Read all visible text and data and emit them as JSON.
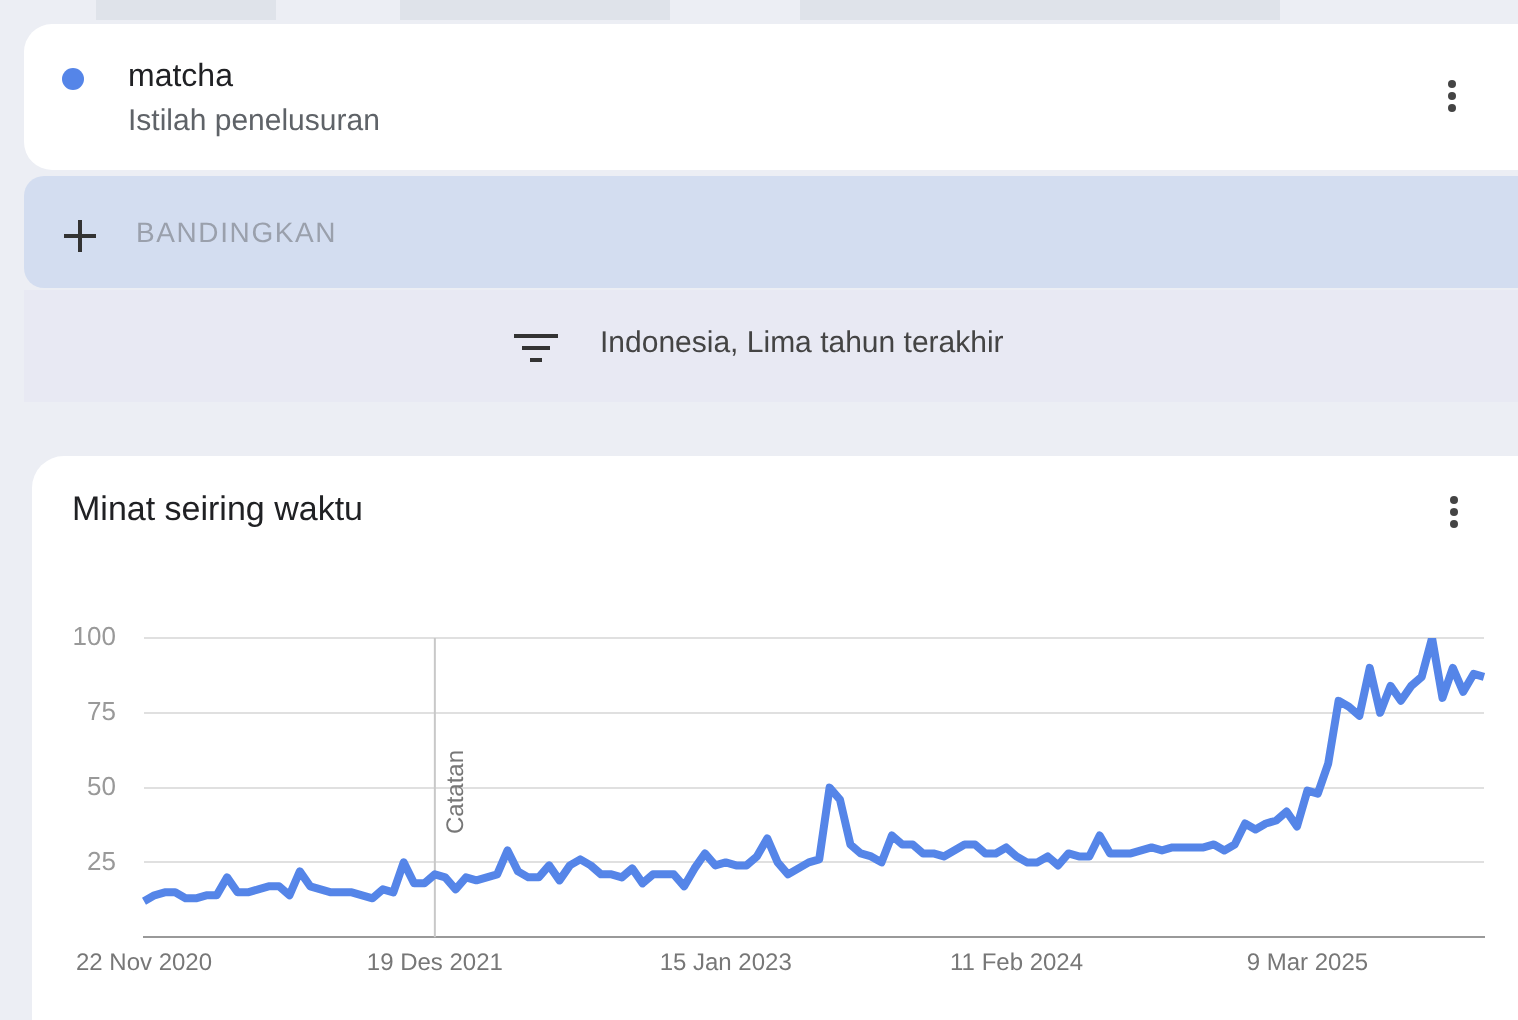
{
  "chart_data": {
    "type": "line",
    "title": "Minat seiring waktu",
    "annotations": [
      "Istilah penelusuran",
      "BANDINGKAN",
      "Indonesia, Lima tahun terakhir"
    ],
    "categories": [
      "22 Nov 2020",
      null,
      null,
      null,
      null,
      null,
      null,
      null,
      null,
      null,
      null,
      null,
      null,
      null,
      null,
      null,
      null,
      null,
      null,
      null,
      null,
      null,
      null,
      null,
      null,
      null,
      null,
      null,
      "19 Des 2021",
      null,
      null,
      null,
      null,
      null,
      null,
      null,
      null,
      null,
      null,
      null,
      null,
      null,
      null,
      null,
      null,
      null,
      null,
      null,
      null,
      null,
      null,
      null,
      null,
      null,
      null,
      null,
      "15 Jan 2023",
      null,
      null,
      null,
      null,
      null,
      null,
      null,
      null,
      null,
      null,
      null,
      null,
      null,
      null,
      null,
      null,
      null,
      null,
      null,
      null,
      null,
      null,
      null,
      null,
      null,
      null,
      null,
      "11 Feb 2024",
      null,
      null,
      null,
      null,
      null,
      null,
      null,
      null,
      null,
      null,
      null,
      null,
      null,
      null,
      null,
      null,
      null,
      null,
      null,
      null,
      null,
      null,
      null,
      null,
      null,
      null,
      null,
      "9 Mar 2025",
      null,
      null,
      null,
      null,
      null,
      null,
      null,
      null,
      null,
      null,
      null,
      null,
      null,
      null,
      null,
      null,
      null
    ],
    "series": [
      {
        "name": "matcha",
        "color": "#5585e8",
        "values": [
          12,
          14,
          15,
          15,
          13,
          13,
          14,
          14,
          20,
          15,
          15,
          16,
          17,
          17,
          14,
          22,
          17,
          16,
          15,
          15,
          15,
          14,
          13,
          16,
          15,
          25,
          18,
          18,
          21,
          20,
          16,
          20,
          19,
          20,
          21,
          29,
          22,
          20,
          20,
          24,
          19,
          24,
          26,
          24,
          21,
          21,
          20,
          23,
          18,
          21,
          21,
          21,
          17,
          23,
          28,
          24,
          25,
          24,
          24,
          27,
          33,
          25,
          21,
          23,
          25,
          26,
          50,
          46,
          31,
          28,
          27,
          25,
          34,
          31,
          31,
          28,
          28,
          27,
          29,
          31,
          31,
          28,
          28,
          30,
          27,
          25,
          25,
          27,
          24,
          28,
          27,
          27,
          34,
          28,
          28,
          28,
          29,
          30,
          29,
          30,
          30,
          30,
          30,
          31,
          29,
          31,
          38,
          36,
          38,
          39,
          42,
          37,
          49,
          48,
          58,
          79,
          77,
          74,
          90,
          75,
          84,
          79,
          84,
          87,
          100,
          80,
          90,
          82,
          88,
          87
        ]
      }
    ],
    "ylim": [
      0,
      100
    ],
    "yticks": [
      25,
      50,
      75,
      100
    ],
    "grid": "y",
    "legend": "top left",
    "marker": "none",
    "line_style": "solid",
    "ref_lines": [
      {
        "axis": "x",
        "value": "19 Des 2021",
        "label": "Catatan",
        "color": "#c8c8c8"
      }
    ]
  }
}
